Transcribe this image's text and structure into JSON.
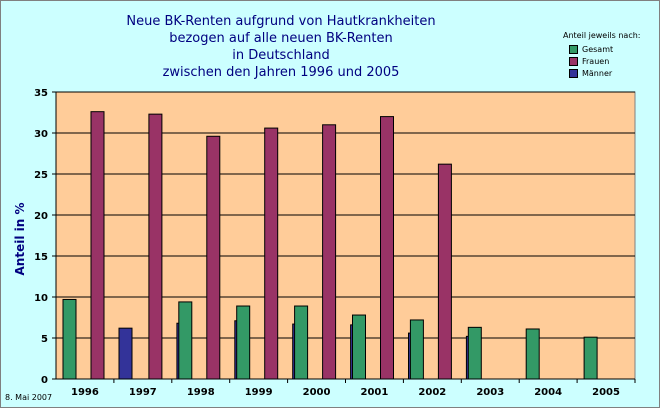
{
  "chart_data": {
    "type": "bar",
    "title_lines": [
      "Neue BK-Renten aufgrund von Hautkrankheiten",
      "bezogen auf alle neuen BK-Renten",
      "in Deutschland",
      "zwischen den Jahren 1996 und 2005"
    ],
    "ylabel": "Anteil in %",
    "xlabel": "",
    "ylim": [
      0,
      35
    ],
    "yticks": [
      0,
      5,
      10,
      15,
      20,
      25,
      30,
      35
    ],
    "grid": true,
    "legend_placement": "top-right",
    "legend_title": "Anteil jeweils nach:",
    "categories": [
      "1996",
      "1997",
      "1998",
      "1999",
      "2000",
      "2001",
      "2002",
      "2003",
      "2004",
      "2005"
    ],
    "series": [
      {
        "name": "Gesamt",
        "color": "#339966",
        "values": [
          9.7,
          null,
          9.4,
          8.9,
          8.9,
          7.8,
          7.2,
          6.3,
          6.1,
          5.1
        ]
      },
      {
        "name": "Frauen",
        "color": "#993366",
        "values": [
          32.6,
          32.3,
          29.6,
          30.6,
          31.0,
          32.0,
          26.2,
          null,
          null,
          null
        ]
      },
      {
        "name": "Männer",
        "color": "#333399",
        "values": [
          6.2,
          6.8,
          7.1,
          6.7,
          6.6,
          5.6,
          5.2,
          null,
          null,
          null
        ]
      }
    ],
    "colors": {
      "plot_background": "#ffcc99",
      "frame_background": "#ccffff",
      "title": "#000080"
    }
  },
  "footer": {
    "date": "8. Mai 2007"
  }
}
